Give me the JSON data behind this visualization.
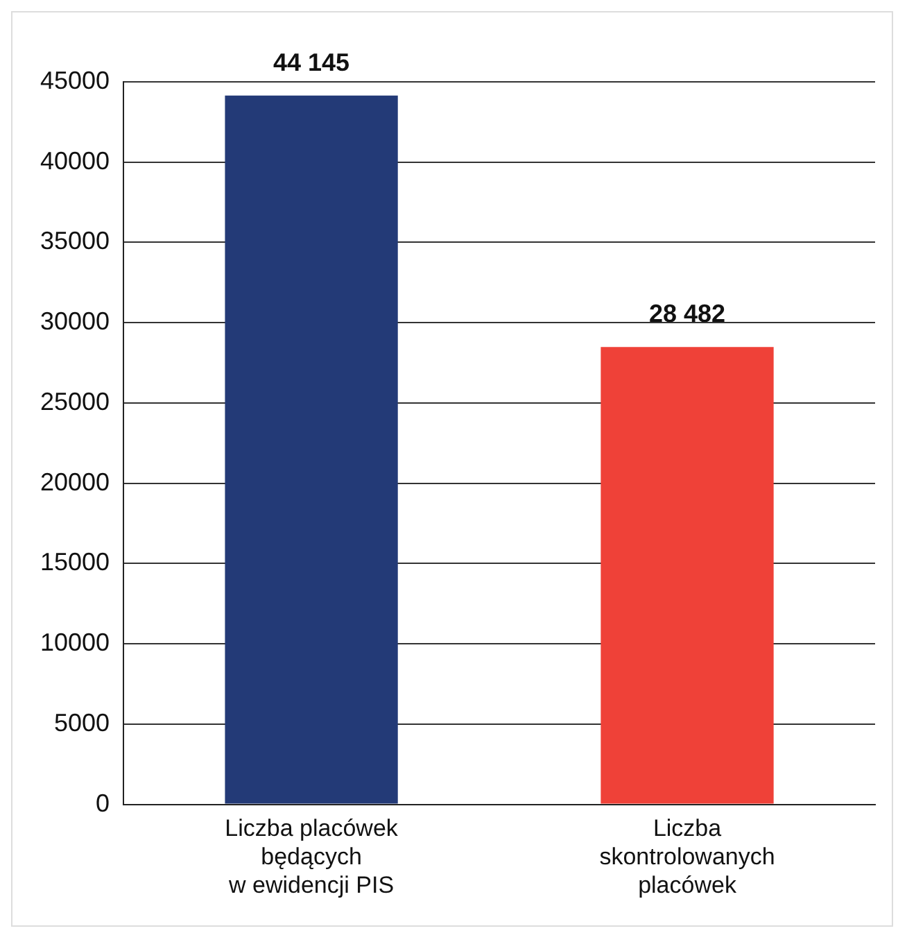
{
  "chart_data": {
    "type": "bar",
    "categories": [
      "Liczba placówek\nbędących\nw ewidencji PIS",
      "Liczba\nskontrolowanych\nplacówek"
    ],
    "values": [
      44145,
      28482
    ],
    "colors": [
      "#233a77",
      "#ef4138"
    ],
    "value_labels": [
      "44 145",
      "28 482"
    ],
    "ylim": [
      0,
      45000
    ],
    "yticks": [
      0,
      5000,
      10000,
      15000,
      20000,
      25000,
      30000,
      35000,
      40000,
      45000
    ],
    "grid": "y"
  }
}
